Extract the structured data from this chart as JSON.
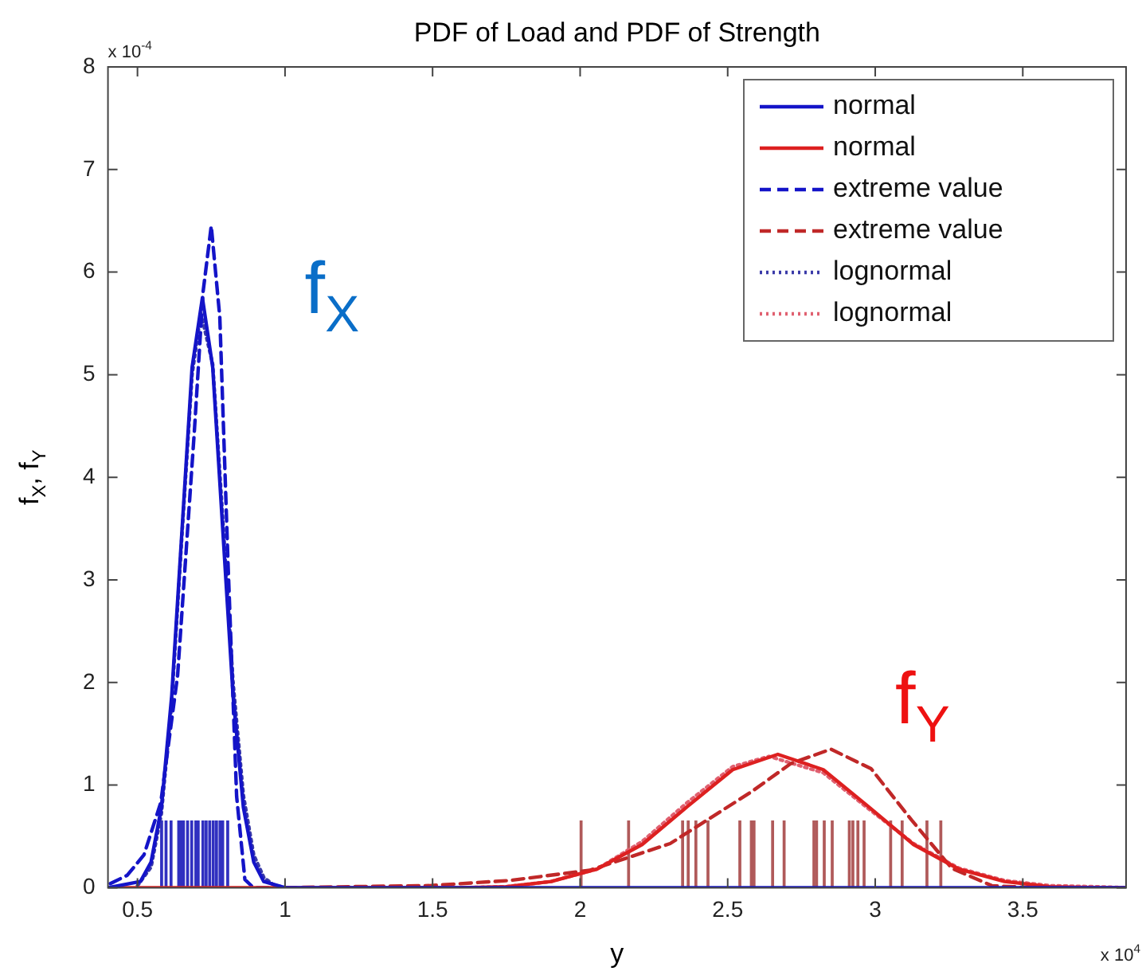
{
  "chart_data": {
    "type": "line",
    "title": "PDF of Load and PDF of Strength",
    "xlabel": "y",
    "ylabel": "f$_{X}$, f$_{Y}$",
    "annotations": [
      "f$_{X}$",
      "f$_{Y}$",
      "x 10$^{-4}$",
      "x 10$^{4}$"
    ],
    "xlim": [
      0.4,
      3.85
    ],
    "xticks": [
      0.5,
      1,
      1.5,
      2,
      2.5,
      3,
      3.5
    ],
    "ylim": [
      0,
      8
    ],
    "yticks": [
      0,
      1,
      2,
      3,
      4,
      5,
      6,
      7,
      8
    ],
    "legend": "top right",
    "series": [
      {
        "name": "normal",
        "color": "#1414c8",
        "line_style": "solid",
        "x": [
          0.4,
          0.51,
          0.546,
          0.581,
          0.616,
          0.651,
          0.685,
          0.72,
          0.755,
          0.789,
          0.824,
          0.859,
          0.894,
          0.928,
          1.0,
          3.85
        ],
        "values": [
          0,
          0.06,
          0.25,
          0.78,
          1.87,
          3.49,
          5.07,
          5.75,
          5.07,
          3.49,
          1.87,
          0.78,
          0.25,
          0.06,
          0,
          0
        ]
      },
      {
        "name": "normal",
        "color": "#dd2020",
        "line_style": "solid",
        "x": [
          0.4,
          1.595,
          1.749,
          1.902,
          2.056,
          2.21,
          2.363,
          2.517,
          2.67,
          2.824,
          2.977,
          3.13,
          3.284,
          3.438,
          3.591,
          3.745,
          3.85
        ],
        "values": [
          0,
          0,
          0.01,
          0.06,
          0.18,
          0.42,
          0.79,
          1.15,
          1.3,
          1.15,
          0.79,
          0.42,
          0.18,
          0.06,
          0.01,
          0,
          0
        ]
      },
      {
        "name": "extreme value",
        "color": "#1414c8",
        "line_style": "dashed",
        "x": [
          0.408,
          0.465,
          0.522,
          0.579,
          0.636,
          0.693,
          0.722,
          0.75,
          0.779,
          0.807,
          0.836,
          0.864,
          0.893,
          1.0
        ],
        "values": [
          0.04,
          0.12,
          0.32,
          0.83,
          2.07,
          4.46,
          5.8,
          6.45,
          5.56,
          3.15,
          0.89,
          0.08,
          0,
          0
        ]
      },
      {
        "name": "extreme value",
        "color": "#c02828",
        "line_style": "dashed",
        "x": [
          1.0,
          1.215,
          1.488,
          1.76,
          2.033,
          2.305,
          2.578,
          2.714,
          2.85,
          2.986,
          3.123,
          3.259,
          3.395,
          3.53
        ],
        "values": [
          0,
          0.01,
          0.02,
          0.07,
          0.17,
          0.43,
          0.93,
          1.21,
          1.35,
          1.16,
          0.66,
          0.19,
          0.02,
          0
        ]
      },
      {
        "name": "lognormal",
        "color": "#3a3aa8",
        "line_style": "dotted",
        "x": [
          0.5,
          0.546,
          0.581,
          0.616,
          0.651,
          0.685,
          0.715,
          0.755,
          0.789,
          0.824,
          0.859,
          0.894,
          0.928,
          0.96,
          1.0
        ],
        "values": [
          0.02,
          0.2,
          0.72,
          1.8,
          3.45,
          5.0,
          5.6,
          5.1,
          3.6,
          2.0,
          0.9,
          0.32,
          0.1,
          0.03,
          0
        ]
      },
      {
        "name": "lognormal",
        "color": "#e06070",
        "line_style": "dotted",
        "x": [
          1.6,
          1.75,
          1.9,
          2.056,
          2.21,
          2.363,
          2.517,
          2.64,
          2.824,
          2.977,
          3.13,
          3.284,
          3.438,
          3.591,
          3.745,
          3.85
        ],
        "values": [
          0,
          0.01,
          0.06,
          0.18,
          0.45,
          0.83,
          1.18,
          1.28,
          1.12,
          0.77,
          0.43,
          0.19,
          0.07,
          0.02,
          0.01,
          0
        ]
      },
      {
        "type": "bar",
        "color": "#3030c0",
        "x": [
          0.585,
          0.6,
          0.617,
          0.643,
          0.652,
          0.659,
          0.673,
          0.687,
          0.701,
          0.709,
          0.725,
          0.736,
          0.748,
          0.76,
          0.771,
          0.783,
          0.792,
          0.809
        ],
        "values": [
          0.65,
          0.65,
          0.65,
          0.65,
          0.65,
          0.65,
          0.65,
          0.65,
          0.65,
          0.65,
          0.65,
          0.65,
          0.65,
          0.65,
          0.65,
          0.65,
          0.65,
          0.65
        ]
      },
      {
        "type": "bar",
        "color": "#b05a5a",
        "x": [
          2.0,
          2.161,
          2.344,
          2.363,
          2.389,
          2.43,
          2.538,
          2.577,
          2.586,
          2.649,
          2.688,
          2.789,
          2.798,
          2.824,
          2.851,
          2.909,
          2.921,
          2.938,
          2.959,
          3.049,
          3.088,
          3.172,
          3.219
        ],
        "values": [
          0.65,
          0.65,
          0.65,
          0.65,
          0.65,
          0.65,
          0.65,
          0.65,
          0.65,
          0.65,
          0.65,
          0.65,
          0.65,
          0.65,
          0.65,
          0.65,
          0.65,
          0.65,
          0.65,
          0.65,
          0.65,
          0.65,
          0.65
        ]
      }
    ]
  }
}
